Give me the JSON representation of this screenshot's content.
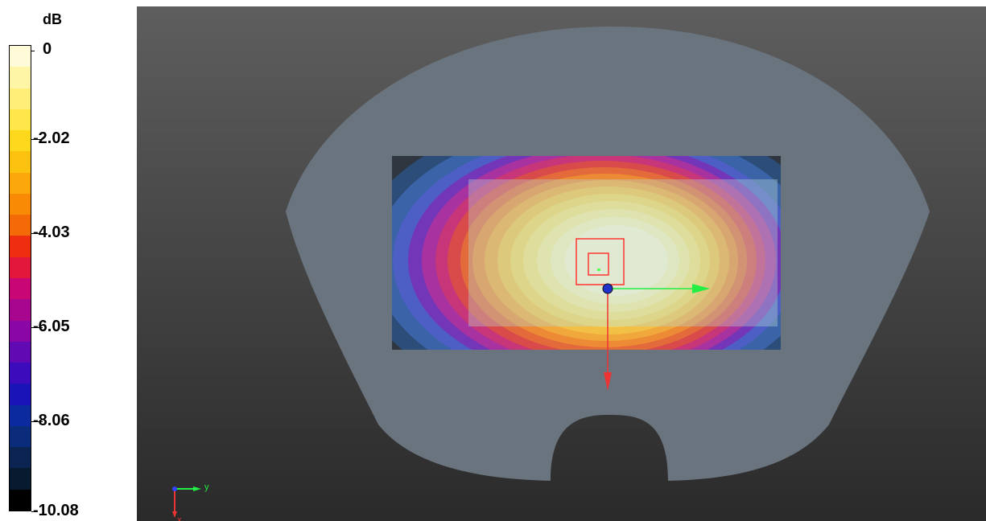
{
  "legend": {
    "unit": "dB",
    "ticks": [
      "0",
      "-2.02",
      "-4.03",
      "-6.05",
      "-8.06",
      "-10.08"
    ],
    "colors": [
      "#fffbd9",
      "#fff5a6",
      "#ffef78",
      "#ffe74a",
      "#fdd81c",
      "#fdc10f",
      "#fca70a",
      "#f98a05",
      "#f46a07",
      "#ee2e0e",
      "#e3163c",
      "#c80674",
      "#a8068f",
      "#8a07a6",
      "#6109b3",
      "#3c0cbc",
      "#1a14b8",
      "#0c2aa0",
      "#0a2c7a",
      "#0b2452",
      "#071a30",
      "#000000"
    ]
  },
  "viewport": {
    "background_top": "#5e5e5e",
    "background_bottom": "#2a2a2a",
    "phantom_color": "#6c7680",
    "axis_labels": {
      "y": "y",
      "x": "x"
    },
    "axis_colors": {
      "y": "#22ee44",
      "x": "#ee3333",
      "z": "#3344ff"
    }
  }
}
